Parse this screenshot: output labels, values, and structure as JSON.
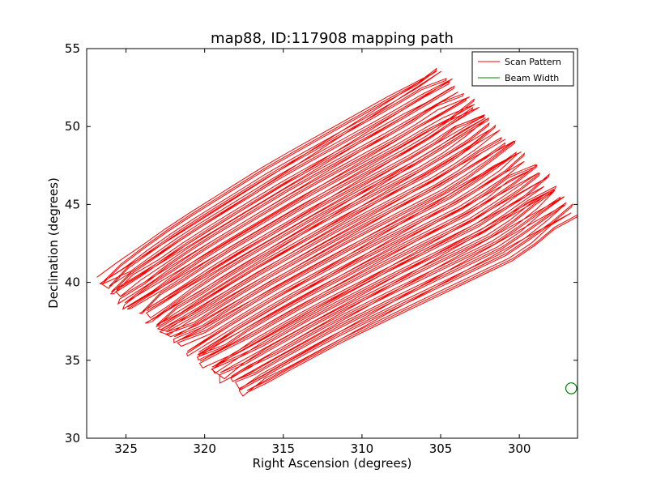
{
  "chart_data": {
    "type": "line",
    "title": "map88, ID:117908 mapping path",
    "xlabel": "Right Ascension (degrees)",
    "ylabel": "Declination (degrees)",
    "xlim": [
      327.5,
      296.3
    ],
    "ylim": [
      30,
      55
    ],
    "x_inverted": true,
    "xticks": [
      325,
      320,
      315,
      310,
      305,
      300
    ],
    "yticks": [
      30,
      35,
      40,
      45,
      50,
      55
    ],
    "grid": false,
    "legend": {
      "placement": "top-right",
      "entries": [
        {
          "label": "Scan Pattern",
          "color": "#ff0000"
        },
        {
          "label": "Beam Width",
          "color": "#008000"
        }
      ]
    },
    "series": [
      {
        "name": "Scan Pattern",
        "kind": "raster",
        "color": "#ff0000",
        "num_lines": 54,
        "lower_left_edge": [
          [
            317.5,
            32.8
          ],
          [
            327,
            40.2
          ]
        ],
        "upper_right_edge": [
          [
            305.2,
            53.7
          ],
          [
            296.3,
            44.5
          ]
        ],
        "bottom_boundary": [
          [
            317.5,
            32.8
          ],
          [
            311,
            36.3
          ],
          [
            305,
            39.2
          ],
          [
            300,
            41.6
          ],
          [
            296.3,
            44.5
          ]
        ],
        "top_boundary": [
          [
            327,
            40.2
          ],
          [
            322,
            43.8
          ],
          [
            316,
            47.6
          ],
          [
            310,
            51.0
          ],
          [
            305.2,
            53.7
          ]
        ]
      },
      {
        "name": "Beam Width",
        "kind": "circle",
        "color": "#008000",
        "center": [
          296.7,
          33.2
        ],
        "diameter_deg": 0.7
      }
    ]
  }
}
